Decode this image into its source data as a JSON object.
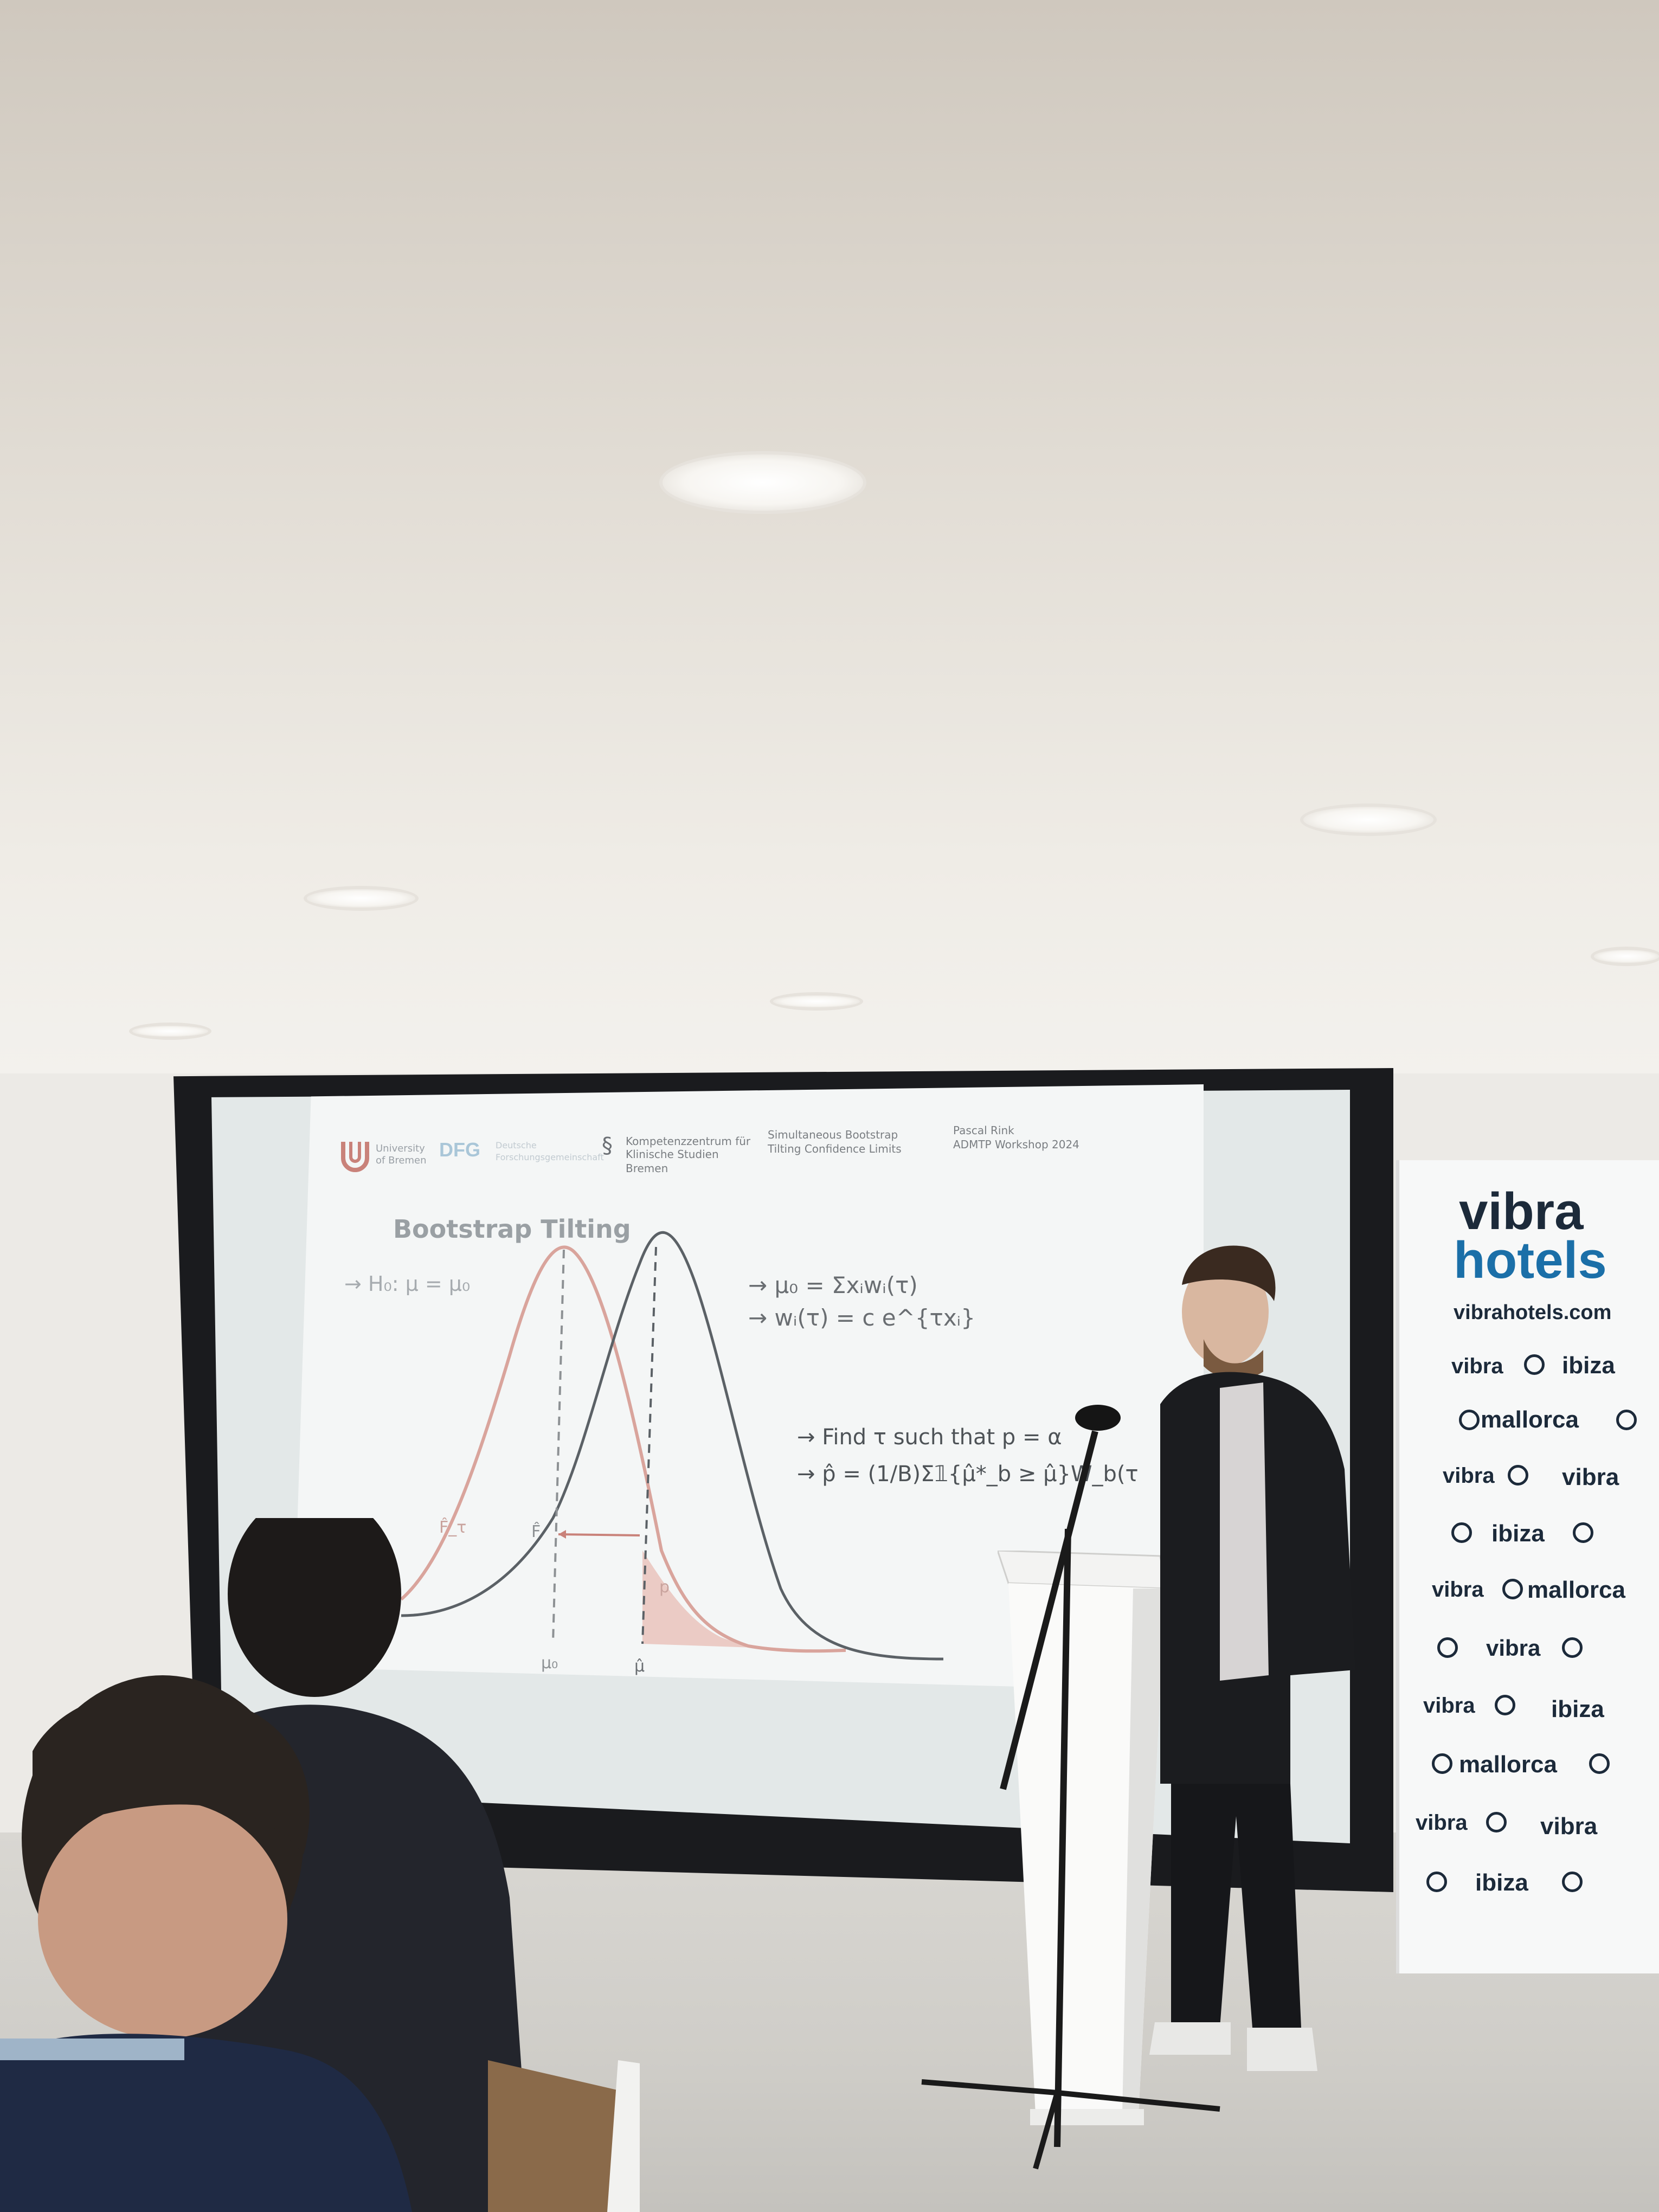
{
  "slide": {
    "title": "Bootstrap Tilting",
    "header": {
      "uni_logo_line1": "University",
      "uni_logo_line2": "of Bremen",
      "dfg_logo": "DFG",
      "dfg_line1": "Deutsche",
      "dfg_line2": "Forschungsgemeinschaft",
      "kks_line1": "Kompetenzzentrum für",
      "kks_line2": "Klinische Studien Bremen",
      "talk_line1": "Simultaneous   Bootstrap",
      "talk_line2": "Tilting   Confidence   Limits",
      "author_line1": "Pascal   Rink",
      "author_line2": "ADMTP   Workshop   2024"
    },
    "hypothesis": "→ H₀: μ = μ₀",
    "eq1": "→ μ₀ = Σxᵢwᵢ(τ)",
    "eq2": "→ wᵢ(τ) = c e^{τxᵢ}",
    "eq3": "→ Find τ such that p = α",
    "eq4": "→ p̂ = (1/B)Σ𝟙{μ̂*_b ≥ μ̂}W_b(τ",
    "label_f_tau": "F̂_τ",
    "label_f": "F̂",
    "label_mu0": "μ₀",
    "label_muhat": "μ̂",
    "label_p": "p"
  },
  "banner": {
    "brand_top": "vibra",
    "brand_bottom": "hotels",
    "url": "vibrahotels.com",
    "rows": [
      [
        "vibra",
        "ibiza"
      ],
      [
        "mallorca"
      ],
      [
        "vibra",
        "vibra"
      ],
      [
        "ibiza"
      ],
      [
        "vibra",
        "mallorca"
      ],
      [
        "vibra"
      ],
      [
        "vibra",
        "ibiza"
      ],
      [
        "mallorca"
      ],
      [
        "vibra",
        "vibra"
      ],
      [
        "ibiza"
      ]
    ]
  },
  "colors": {
    "curve_tilted": "#d9a49c",
    "curve_original": "#5b6166",
    "shade": "#e9c7c1",
    "banner_blue": "#1b6fa8",
    "banner_dark": "#1c2a3a"
  }
}
